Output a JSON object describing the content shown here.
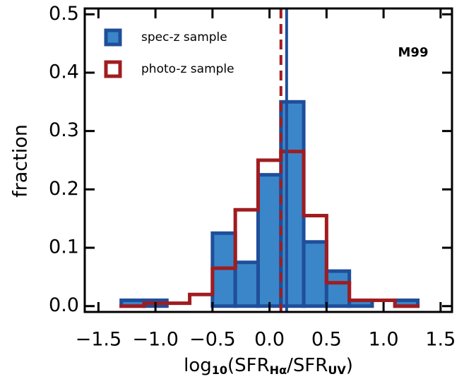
{
  "chart_data": {
    "type": "histogram",
    "ylabel": "fraction",
    "xlabel": [
      "log",
      "10",
      "(SFR",
      "Hα",
      "/SFR",
      "UV",
      ")"
    ],
    "annotation": "M99",
    "bins": [
      -1.3,
      -1.1,
      -0.9,
      -0.7,
      -0.5,
      -0.3,
      -0.1,
      0.1,
      0.3,
      0.5,
      0.7,
      0.9,
      1.1,
      1.3
    ],
    "series": [
      {
        "name": "spec-z sample",
        "color": "#3a86c8",
        "edge_color": "#1f4e9a",
        "filled": true,
        "values": [
          0.01,
          0.01,
          0,
          0,
          0.125,
          0.075,
          0.225,
          0.35,
          0.11,
          0.06,
          0.01,
          0,
          0.01
        ],
        "median": 0.15,
        "median_style": "solid"
      },
      {
        "name": "photo-z sample",
        "color": "#a01c20",
        "edge_color": "#a01c20",
        "filled": false,
        "values": [
          0,
          0.005,
          0.005,
          0.02,
          0.065,
          0.165,
          0.25,
          0.265,
          0.155,
          0.04,
          0.01,
          0.01,
          0
        ],
        "median": 0.1,
        "median_style": "dashed"
      }
    ],
    "xlim": [
      -1.62,
      1.6
    ],
    "ylim": [
      -0.01,
      0.51
    ],
    "xticks": [
      {
        "value": -1.5,
        "label": "−1.5"
      },
      {
        "value": -1.0,
        "label": "−1.0"
      },
      {
        "value": -0.5,
        "label": "−0.5"
      },
      {
        "value": 0,
        "label": "0.0"
      },
      {
        "value": 0.5,
        "label": "0.5"
      },
      {
        "value": 1.0,
        "label": "1.0"
      },
      {
        "value": 1.5,
        "label": "1.5"
      }
    ],
    "yticks": [
      {
        "value": 0,
        "label": "0.0"
      },
      {
        "value": 0.1,
        "label": "0.1"
      },
      {
        "value": 0.2,
        "label": "0.2"
      },
      {
        "value": 0.3,
        "label": "0.3"
      },
      {
        "value": 0.4,
        "label": "0.4"
      },
      {
        "value": 0.5,
        "label": "0.5"
      }
    ],
    "legend": "upper left"
  }
}
